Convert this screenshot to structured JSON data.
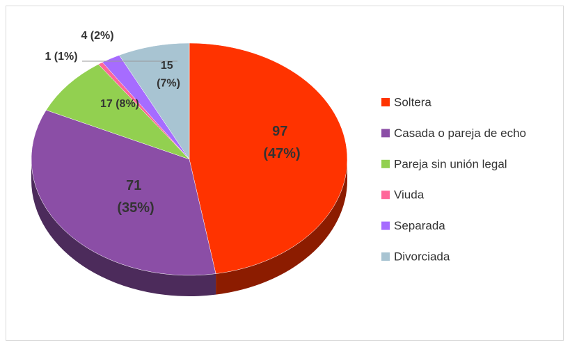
{
  "chart_data": {
    "type": "pie",
    "categories": [
      "Soltera",
      "Casada o pareja de echo",
      "Pareja sin unión legal",
      "Viuda",
      "Separada",
      "Divorciada"
    ],
    "values": [
      97,
      71,
      17,
      1,
      4,
      15
    ],
    "value_labels": [
      "97 (47%)",
      "71 (35%)",
      "17 (8%)",
      "1 (1%)",
      "4 (2%)",
      "15 (7%)"
    ],
    "colors": [
      "#ff3300",
      "#8b4ea6",
      "#92d050",
      "#ff6699",
      "#a66cff",
      "#a8c4d2"
    ],
    "legend": "right"
  }
}
